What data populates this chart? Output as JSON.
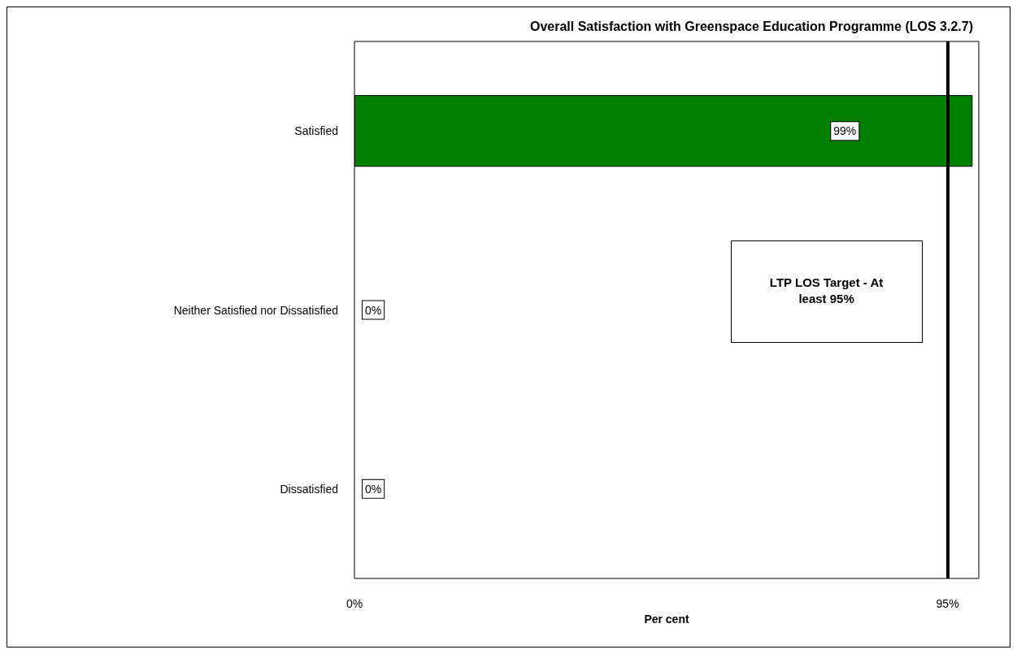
{
  "chart_data": {
    "type": "bar",
    "orientation": "horizontal",
    "title": "Overall Satisfaction with Greenspace Education Programme (LOS 3.2.7)",
    "xlabel": "Per cent",
    "categories": [
      "Satisfied",
      "Neither Satisfied nor Dissatisfied",
      "Dissatisfied"
    ],
    "values": [
      99,
      0,
      0
    ],
    "value_labels": [
      "99%",
      "0%",
      "0%"
    ],
    "color": "#008000",
    "xlim": [
      0,
      100
    ],
    "xticks": [
      {
        "value": 0,
        "label": "0%"
      },
      {
        "value": 95,
        "label": "95%"
      }
    ],
    "ref_lines": [
      {
        "axis": "x",
        "value": 95,
        "label": "LTP LOS Target - At least 95%",
        "color": "#000000"
      }
    ],
    "grid": false
  }
}
